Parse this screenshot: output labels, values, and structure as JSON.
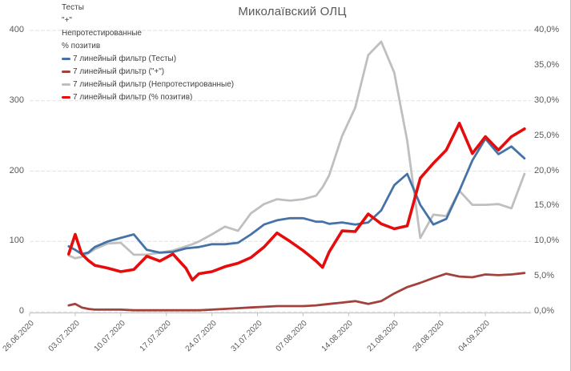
{
  "chart_data": {
    "type": "line",
    "title": "Миколаївский ОЛЦ",
    "legend": [
      {
        "label": "Тесты",
        "color": ""
      },
      {
        "label": "\"+\"",
        "color": ""
      },
      {
        "label": "Непротестированные",
        "color": ""
      },
      {
        "label": "% позитив",
        "color": ""
      },
      {
        "label": "7 линейный фильтр (Тесты)",
        "color": "#4573a7"
      },
      {
        "label": "7 линейный фильтр (\"+\")",
        "color": "#a2423d"
      },
      {
        "label": "7 линейный фильтр (Непротестированные)",
        "color": "#bfbfbf"
      },
      {
        "label": "7 линейный фильтр (% позитив)",
        "color": "#e60c0c"
      }
    ],
    "x_axis_ticks": [
      "26.06.2020",
      "03.07.2020",
      "10.07.2020",
      "17.07.2020",
      "24.07.2020",
      "31.07.2020",
      "07.08.2020",
      "14.08.2020",
      "21.08.2020",
      "28.08.2020",
      "04.09.2020"
    ],
    "left_axis": {
      "min": 0,
      "max": 400,
      "ticks": [
        "0",
        "100",
        "200",
        "300",
        "400"
      ]
    },
    "right_axis": {
      "min_pct": 0,
      "max_pct": 40,
      "ticks": [
        "0,0%",
        "5,0%",
        "10,0%",
        "15,0%",
        "20,0%",
        "25,0%",
        "30,0%",
        "35,0%",
        "40,0%"
      ]
    },
    "x_dates": [
      "02.07",
      "03.07",
      "04.07",
      "05.07",
      "06.07",
      "08.07",
      "10.07",
      "12.07",
      "14.07",
      "16.07",
      "18.07",
      "20.07",
      "21.07",
      "22.07",
      "24.07",
      "26.07",
      "28.07",
      "30.07",
      "01.08",
      "03.08",
      "05.08",
      "07.08",
      "09.08",
      "10.08",
      "11.08",
      "13.08",
      "15.08",
      "17.08",
      "19.08",
      "21.08",
      "23.08",
      "25.08",
      "27.08",
      "29.08",
      "31.08",
      "02.09",
      "04.09",
      "06.09",
      "08.09",
      "10.09"
    ],
    "x_days_from_start": [
      0,
      1,
      2,
      3,
      4,
      6,
      8,
      10,
      12,
      14,
      16,
      18,
      19,
      20,
      22,
      24,
      26,
      28,
      30,
      32,
      34,
      36,
      38,
      39,
      40,
      42,
      44,
      46,
      48,
      50,
      52,
      54,
      56,
      58,
      60,
      62,
      64,
      66,
      68,
      70
    ],
    "series": [
      {
        "name": "7 линейный фильтр (Тесты)",
        "axis": "left",
        "color": "#4573a7",
        "values": [
          93,
          88,
          82,
          84,
          92,
          100,
          105,
          110,
          88,
          84,
          85,
          90,
          91,
          92,
          96,
          96,
          98,
          110,
          124,
          130,
          133,
          133,
          128,
          128,
          125,
          127,
          124,
          127,
          144,
          180,
          196,
          152,
          124,
          132,
          172,
          215,
          246,
          224,
          235,
          218
        ]
      },
      {
        "name": "7 линейный фильтр (\"+\")",
        "axis": "left",
        "color": "#a2423d",
        "values": [
          9,
          11,
          6,
          4,
          3,
          3,
          3,
          2,
          2,
          2,
          2,
          2,
          2,
          2,
          3,
          4,
          5,
          6,
          7,
          8,
          8,
          8,
          9,
          10,
          11,
          13,
          15,
          11,
          15,
          26,
          35,
          41,
          48,
          54,
          50,
          49,
          53,
          52,
          53,
          55
        ]
      },
      {
        "name": "7 линейный фильтр (Непротестированные)",
        "axis": "left",
        "color": "#bfbfbf",
        "values": [
          80,
          76,
          78,
          83,
          89,
          97,
          98,
          81,
          81,
          84,
          87,
          93,
          96,
          100,
          110,
          121,
          115,
          140,
          153,
          160,
          158,
          160,
          165,
          177,
          194,
          250,
          290,
          365,
          384,
          340,
          243,
          105,
          138,
          136,
          172,
          152,
          152,
          153,
          147,
          196
        ]
      },
      {
        "name": "7 линейный фильтр (% позитив)",
        "axis": "right",
        "color": "#e60c0c",
        "values_percent": [
          8.2,
          11.0,
          8.2,
          7.3,
          6.6,
          6.2,
          5.7,
          6.0,
          7.9,
          7.2,
          8.2,
          6.2,
          4.5,
          5.4,
          5.7,
          6.4,
          6.9,
          7.7,
          9.2,
          11.2,
          10.0,
          8.7,
          7.2,
          6.3,
          8.5,
          11.5,
          11.4,
          13.9,
          12.5,
          11.8,
          12.2,
          19.0,
          21.1,
          23.0,
          26.8,
          22.5,
          24.9,
          23.0,
          24.9,
          26.0
        ]
      }
    ]
  }
}
